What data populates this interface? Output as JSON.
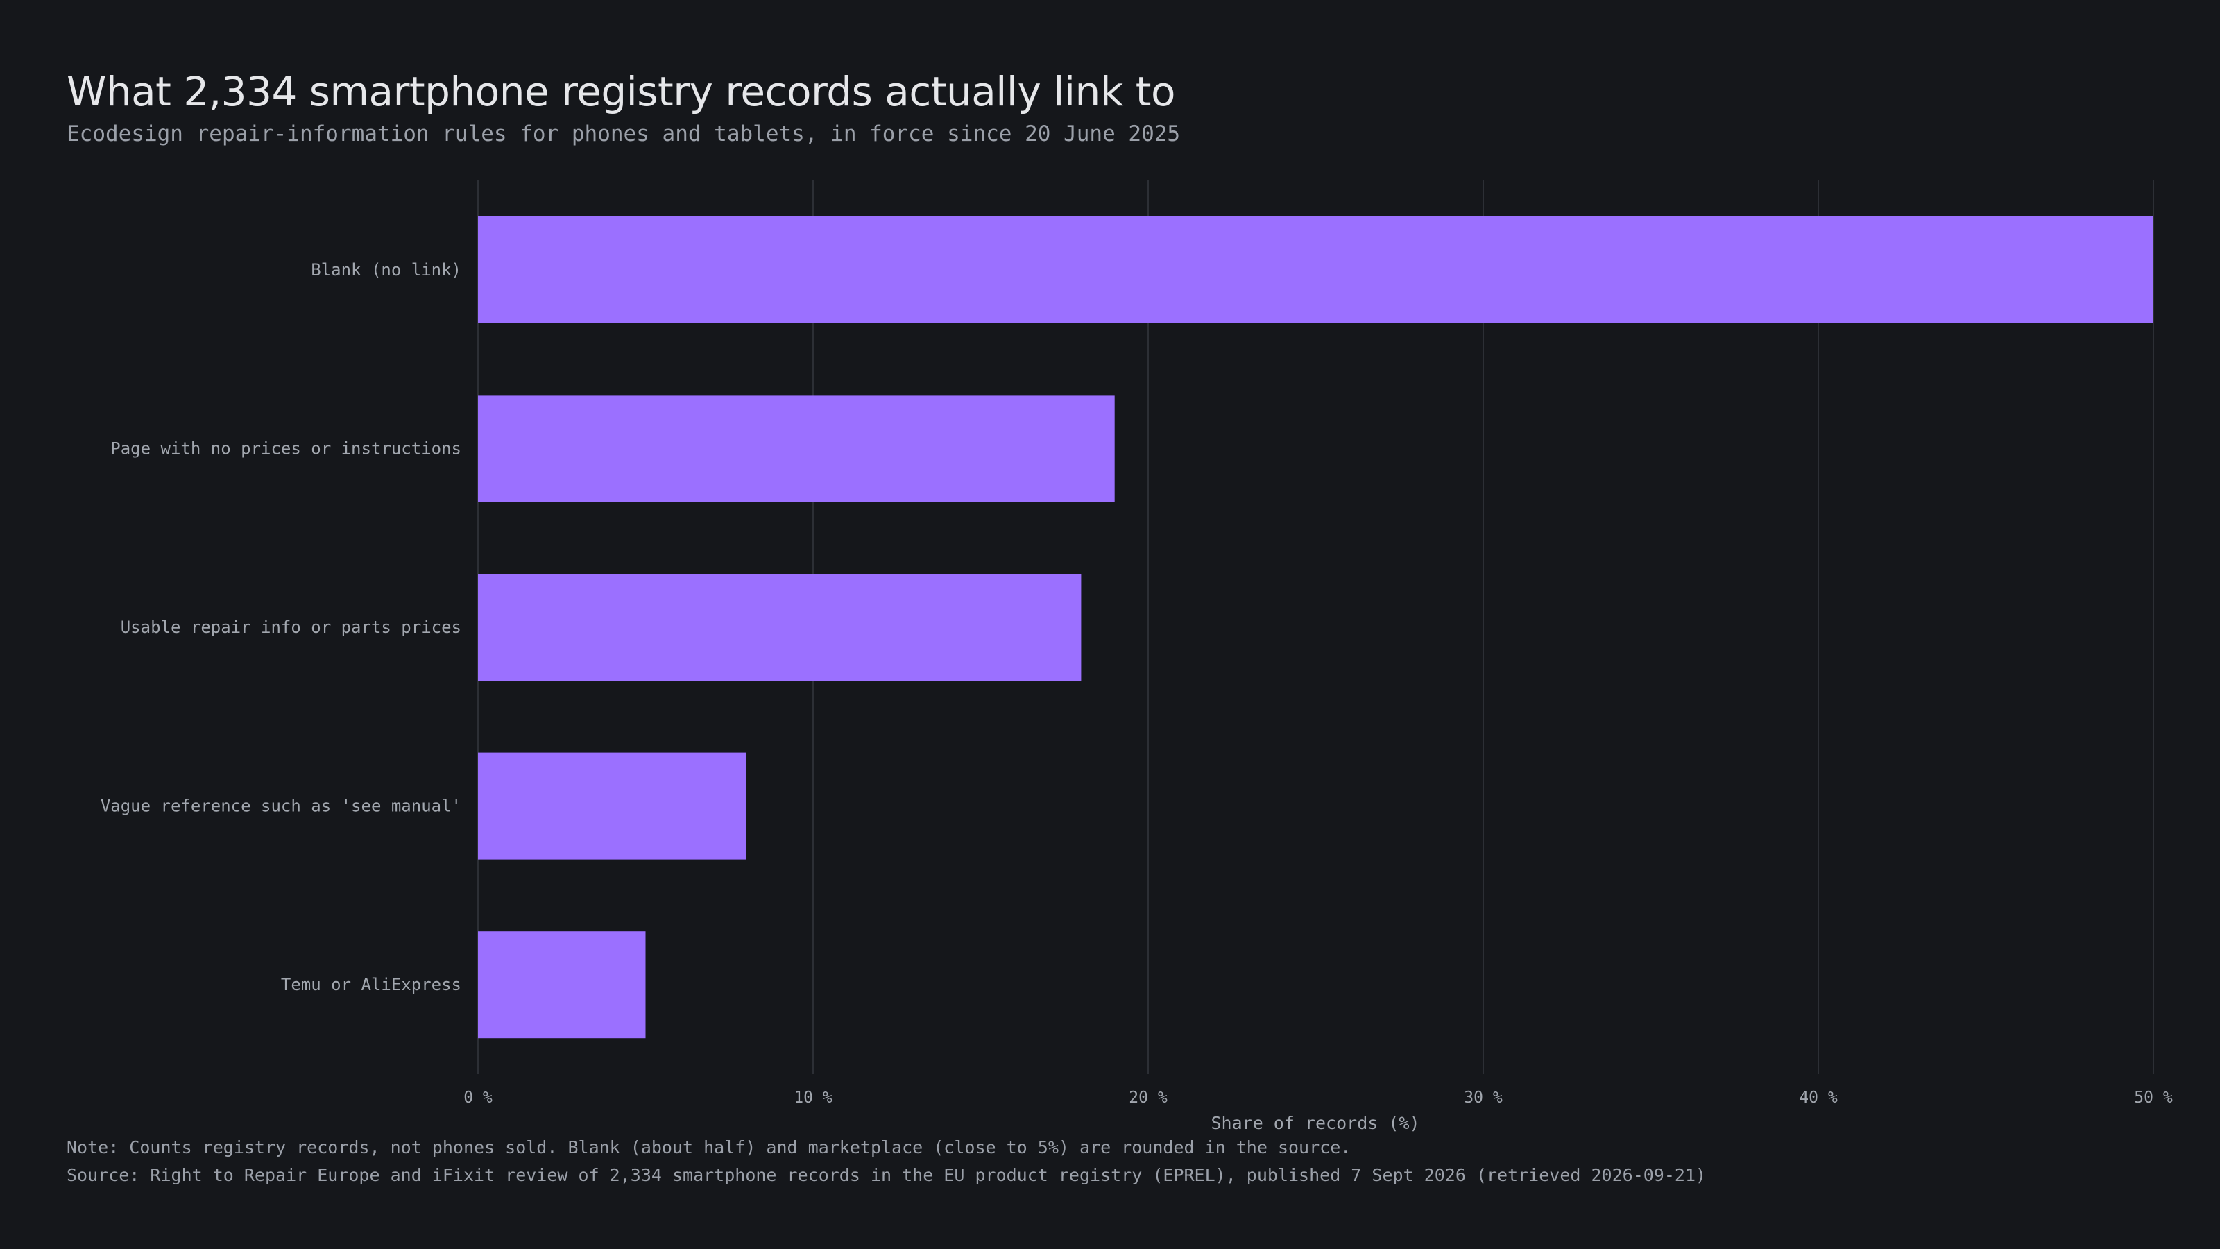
{
  "header": {
    "title": "What 2,334 smartphone registry records actually link to",
    "subtitle": "Ecodesign repair-information rules for phones and tablets, in force since 20 June 2025"
  },
  "footer": {
    "note": "Note: Counts registry records, not phones sold. Blank (about half) and marketplace (close to 5%) are rounded in the source.",
    "source": "Source: Right to Repair Europe and iFixit review of 2,334 smartphone records in the EU product registry (EPREL), published 7 Sept 2026 (retrieved 2026-09-21)"
  },
  "colors": {
    "background": "#15171b",
    "bar": "#9b70ff",
    "grid": "#2c2f35",
    "text": "#a2a7af"
  },
  "chart_data": {
    "type": "bar",
    "orientation": "horizontal",
    "categories": [
      "Blank (no link)",
      "Page with no prices or instructions",
      "Usable repair info or parts prices",
      "Vague reference such as 'see manual'",
      "Temu or AliExpress"
    ],
    "values": [
      50,
      19,
      18,
      8,
      5
    ],
    "xlabel": "Share of records (%)",
    "xlim": [
      0,
      50
    ],
    "ticks": [
      0,
      10,
      20,
      30,
      40,
      50
    ],
    "tick_labels": [
      "0 %",
      "10 %",
      "20 %",
      "30 %",
      "40 %",
      "50 %"
    ],
    "grid": "vertical"
  }
}
